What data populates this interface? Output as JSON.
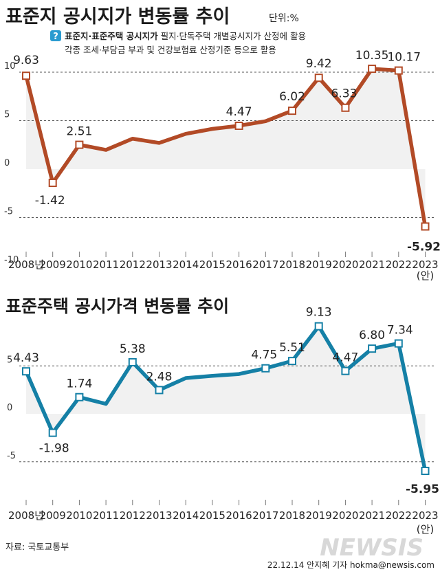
{
  "header": {
    "main_title": "표준지 공시지가 변동률 추이",
    "unit": "단위:%",
    "info_icon": "question-icon",
    "info_bold": "표준지·표준주택 공시지가",
    "info_line1_rest": " 필지·단독주택 개별공시지가 산정에 활용",
    "info_line2": "각종 조세·부담금 부과 및 건강보험료 산정기준 등으로 활용"
  },
  "colors": {
    "land": "#b24a26",
    "house": "#1580a6",
    "fill": "#f1f1f1",
    "grid": "#555555"
  },
  "chart_data": [
    {
      "type": "line",
      "title": "표준지 공시지가 변동률 추이",
      "xlabel": "",
      "ylabel": "",
      "unit": "%",
      "ylim": [
        -10,
        10
      ],
      "yticks": [
        10,
        5,
        0,
        -5,
        -10
      ],
      "ytick_labels": [
        "10",
        "5",
        "0",
        "-5",
        "-10"
      ],
      "dashed_gridlines": [
        10,
        5,
        -5
      ],
      "categories": [
        "2008년",
        "2009",
        "2010",
        "2011",
        "2012",
        "2013",
        "2014",
        "2015",
        "2016",
        "2017",
        "2018",
        "2019",
        "2020",
        "2021",
        "2022",
        "2023"
      ],
      "last_category_note": "(안)",
      "values": [
        9.63,
        -1.42,
        2.51,
        1.98,
        3.14,
        2.7,
        3.64,
        4.15,
        4.47,
        4.94,
        6.02,
        9.42,
        6.33,
        10.35,
        10.17,
        -5.92
      ],
      "labels": [
        {
          "index": 0,
          "text": "9.63"
        },
        {
          "index": 1,
          "text": "-1.42"
        },
        {
          "index": 2,
          "text": "2.51"
        },
        {
          "index": 8,
          "text": "4.47"
        },
        {
          "index": 10,
          "text": "6.02"
        },
        {
          "index": 11,
          "text": "9.42"
        },
        {
          "index": 12,
          "text": "6.33"
        },
        {
          "index": 13,
          "text": "10.35"
        },
        {
          "index": 14,
          "text": "10.17"
        },
        {
          "index": 15,
          "text": "-5.92",
          "highlight": true
        }
      ]
    },
    {
      "type": "line",
      "title": "표준주택 공시가격 변동률 추이",
      "xlabel": "",
      "ylabel": "",
      "unit": "%",
      "ylim": [
        -7,
        9.5
      ],
      "yticks": [
        5,
        0,
        -5
      ],
      "ytick_labels": [
        "5",
        "0",
        "-5"
      ],
      "dashed_gridlines": [
        5,
        -5
      ],
      "categories": [
        "2008년",
        "2009",
        "2010",
        "2011",
        "2012",
        "2013",
        "2014",
        "2015",
        "2016",
        "2017",
        "2018",
        "2019",
        "2020",
        "2021",
        "2022",
        "2023"
      ],
      "last_category_note": "(안)",
      "values": [
        4.43,
        -1.98,
        1.74,
        1.04,
        5.38,
        2.48,
        3.73,
        3.96,
        4.15,
        4.75,
        5.51,
        9.13,
        4.47,
        6.8,
        7.34,
        -5.95
      ],
      "labels": [
        {
          "index": 0,
          "text": "4.43"
        },
        {
          "index": 1,
          "text": "-1.98"
        },
        {
          "index": 2,
          "text": "1.74"
        },
        {
          "index": 4,
          "text": "5.38"
        },
        {
          "index": 5,
          "text": "2.48"
        },
        {
          "index": 9,
          "text": "4.75"
        },
        {
          "index": 10,
          "text": "5.51"
        },
        {
          "index": 11,
          "text": "9.13"
        },
        {
          "index": 12,
          "text": "4.47"
        },
        {
          "index": 13,
          "text": "6.80"
        },
        {
          "index": 14,
          "text": "7.34"
        },
        {
          "index": 15,
          "text": "-5.95",
          "highlight": true
        }
      ]
    }
  ],
  "footer": {
    "source": "자료: 국토교통부",
    "credit": "22.12.14 안지혜 기자 hokma@newsis.com",
    "logo": "NEWSIS"
  }
}
